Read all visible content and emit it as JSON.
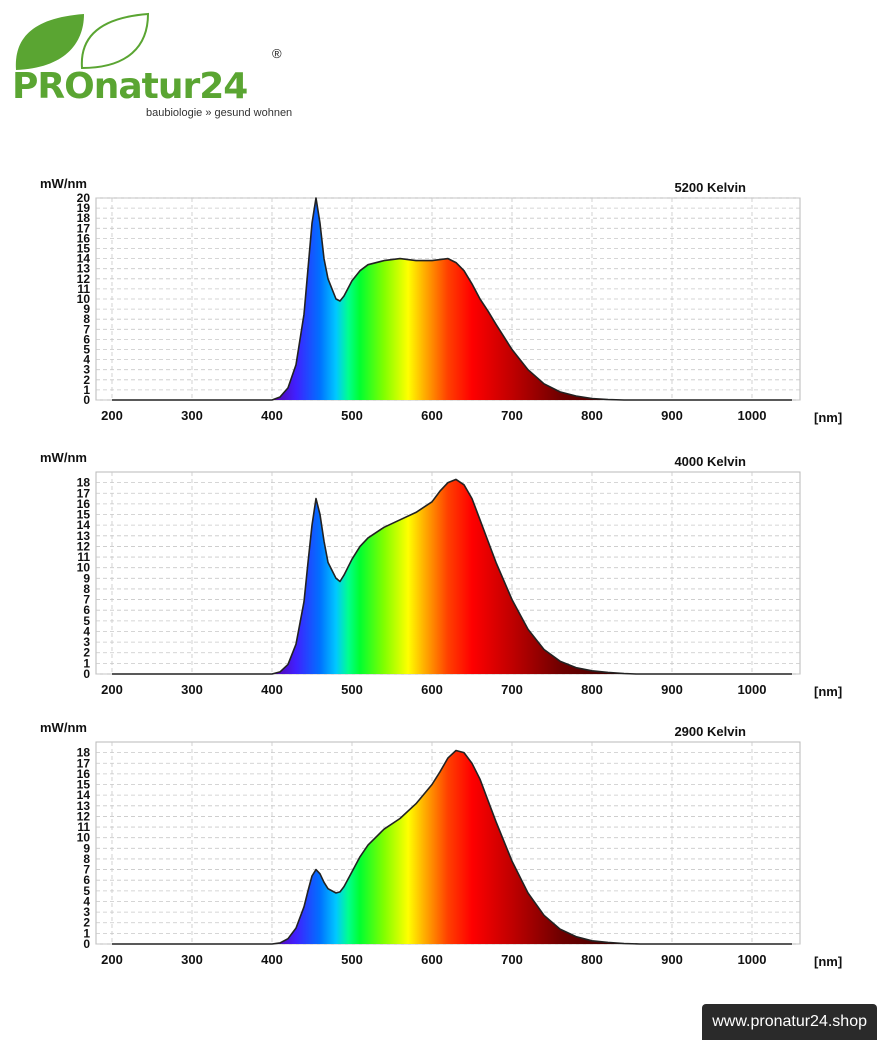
{
  "logo": {
    "brand": "PROnatur24",
    "tagline": "baubiologie » gesund wohnen",
    "registered": "®",
    "icon": "leaf-icon"
  },
  "footer": {
    "url": "www.pronatur24.shop"
  },
  "colors": {
    "brand_green": "#5aa532",
    "grid": "#c8c8c8",
    "curve": "#222222"
  },
  "chart_data": [
    {
      "type": "area",
      "ylabel": "mW/nm",
      "xlabel": "[nm]",
      "annotation": "5200 Kelvin",
      "xlim": [
        180,
        1060
      ],
      "ylim": [
        0,
        20
      ],
      "xticks": [
        200,
        300,
        400,
        500,
        600,
        700,
        800,
        900,
        1000
      ],
      "yticks": [
        0,
        1,
        2,
        3,
        4,
        5,
        6,
        7,
        8,
        9,
        10,
        11,
        12,
        13,
        14,
        15,
        16,
        17,
        18,
        19,
        20
      ],
      "grid": true,
      "x": [
        200,
        400,
        410,
        420,
        430,
        440,
        445,
        450,
        455,
        460,
        465,
        470,
        480,
        485,
        490,
        500,
        510,
        520,
        540,
        560,
        580,
        600,
        620,
        630,
        640,
        650,
        660,
        670,
        680,
        700,
        720,
        740,
        760,
        780,
        800,
        820,
        840,
        1050
      ],
      "y": [
        0,
        0,
        0.3,
        1.2,
        3.5,
        8.5,
        13,
        17.5,
        20,
        17.5,
        14,
        12,
        10,
        9.8,
        10.3,
        11.8,
        12.8,
        13.4,
        13.8,
        14,
        13.8,
        13.8,
        14,
        13.6,
        12.8,
        11.5,
        10,
        8.8,
        7.5,
        5,
        3,
        1.6,
        0.8,
        0.4,
        0.15,
        0.05,
        0,
        0
      ]
    },
    {
      "type": "area",
      "ylabel": "mW/nm",
      "xlabel": "[nm]",
      "annotation": "4000 Kelvin",
      "xlim": [
        180,
        1060
      ],
      "ylim": [
        0,
        19
      ],
      "xticks": [
        200,
        300,
        400,
        500,
        600,
        700,
        800,
        900,
        1000
      ],
      "yticks": [
        0,
        1,
        2,
        3,
        4,
        5,
        6,
        7,
        8,
        9,
        10,
        11,
        12,
        13,
        14,
        15,
        16,
        17,
        18
      ],
      "grid": true,
      "x": [
        200,
        400,
        410,
        420,
        430,
        440,
        445,
        450,
        455,
        460,
        465,
        470,
        480,
        485,
        490,
        500,
        510,
        520,
        540,
        560,
        580,
        600,
        610,
        620,
        630,
        640,
        650,
        660,
        670,
        680,
        700,
        720,
        740,
        760,
        780,
        800,
        820,
        840,
        855,
        1050
      ],
      "y": [
        0,
        0,
        0.2,
        0.9,
        2.8,
        6.8,
        10.5,
        14,
        16.5,
        15,
        12.5,
        10.5,
        9,
        8.7,
        9.3,
        10.8,
        12,
        12.8,
        13.8,
        14.5,
        15.2,
        16.2,
        17.2,
        18,
        18.3,
        17.8,
        16.5,
        14.5,
        12.5,
        10.5,
        7,
        4.2,
        2.3,
        1.2,
        0.6,
        0.3,
        0.15,
        0.05,
        0,
        0
      ]
    },
    {
      "type": "area",
      "ylabel": "mW/nm",
      "xlabel": "[nm]",
      "annotation": "2900 Kelvin",
      "xlim": [
        180,
        1060
      ],
      "ylim": [
        0,
        19
      ],
      "xticks": [
        200,
        300,
        400,
        500,
        600,
        700,
        800,
        900,
        1000
      ],
      "yticks": [
        0,
        1,
        2,
        3,
        4,
        5,
        6,
        7,
        8,
        9,
        10,
        11,
        12,
        13,
        14,
        15,
        16,
        17,
        18
      ],
      "grid": true,
      "x": [
        200,
        400,
        410,
        420,
        430,
        440,
        445,
        450,
        455,
        460,
        465,
        470,
        480,
        485,
        490,
        500,
        510,
        520,
        540,
        560,
        580,
        600,
        610,
        620,
        630,
        640,
        650,
        660,
        670,
        680,
        700,
        720,
        740,
        760,
        780,
        800,
        820,
        840,
        860,
        1050
      ],
      "y": [
        0,
        0,
        0.1,
        0.5,
        1.5,
        3.5,
        5,
        6.4,
        7,
        6.6,
        5.8,
        5.2,
        4.8,
        4.9,
        5.4,
        6.8,
        8.2,
        9.3,
        10.8,
        11.8,
        13.2,
        15,
        16.2,
        17.5,
        18.2,
        18,
        17,
        15.5,
        13.5,
        11.5,
        7.8,
        4.8,
        2.7,
        1.4,
        0.7,
        0.3,
        0.15,
        0.05,
        0,
        0
      ]
    }
  ]
}
